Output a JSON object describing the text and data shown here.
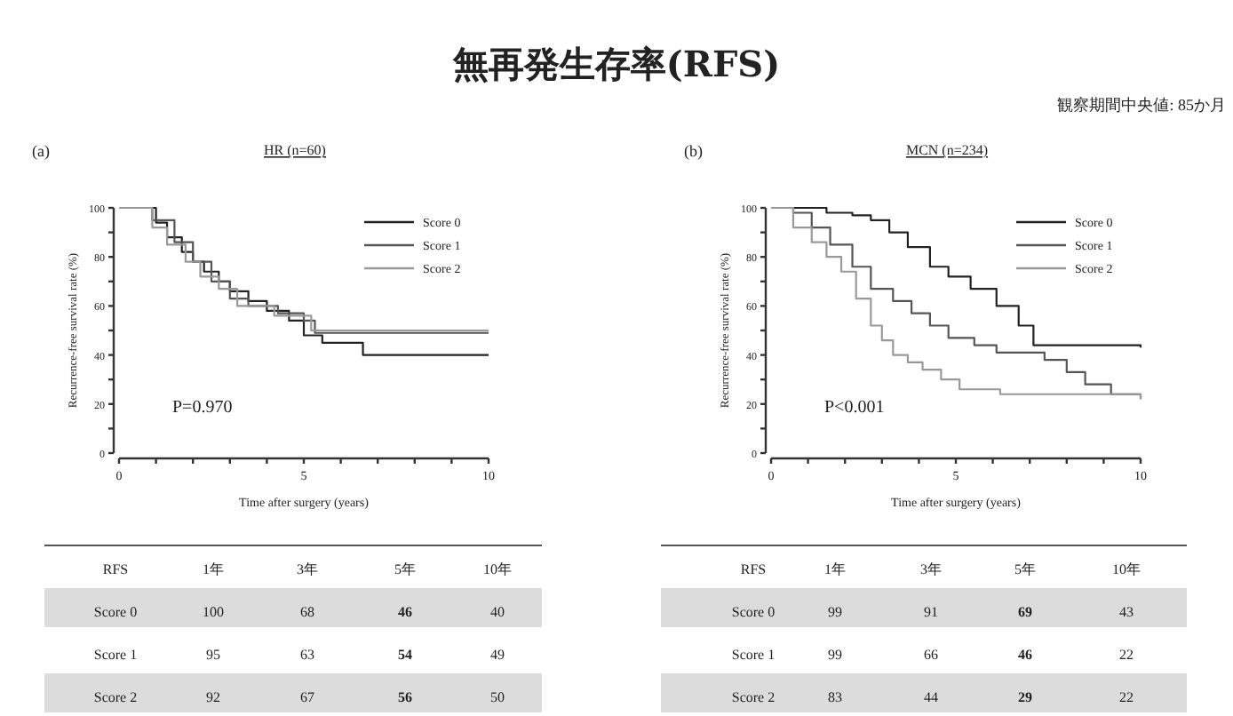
{
  "chart_data": [
    {
      "type": "other",
      "title": "無再発生存率(RFS)",
      "annotations": [
        "観察期間中央値: 85か月"
      ]
    },
    {
      "type": "step",
      "title": "HR (n=60)",
      "xlabel": "Time after surgery (years)",
      "ylabel": "Recurrence-free survival rate (%)",
      "annotations": [
        "(a)",
        "P=0.970"
      ],
      "legend": "top right",
      "xlim": [
        0,
        10
      ],
      "xticks": [
        0,
        {
          "value": 1,
          "label": null
        },
        {
          "value": 2,
          "label": null
        },
        {
          "value": 3,
          "label": null
        },
        {
          "value": 4,
          "label": null
        },
        5,
        {
          "value": 6,
          "label": null
        },
        {
          "value": 7,
          "label": null
        },
        {
          "value": 8,
          "label": null
        },
        {
          "value": 9,
          "label": null
        },
        10
      ],
      "ylim": [
        0,
        100
      ],
      "yticks": [
        0,
        {
          "value": 10,
          "label": null
        },
        20,
        {
          "value": 30,
          "label": null
        },
        40,
        {
          "value": 50,
          "label": null
        },
        60,
        {
          "value": 70,
          "label": null
        },
        80,
        {
          "value": 90,
          "label": null
        },
        100
      ],
      "series": [
        {
          "name": "Score 0",
          "color": "#222222",
          "x": [
            0,
            1,
            1.3,
            1.7,
            2,
            2.3,
            2.7,
            3,
            3.5,
            4,
            4.6,
            5,
            5.5,
            6.6,
            10
          ],
          "values": [
            100,
            94,
            88,
            82,
            78,
            74,
            70,
            66,
            62,
            58,
            54,
            48,
            45,
            40,
            40
          ]
        },
        {
          "name": "Score 1",
          "color": "#555555",
          "x": [
            0,
            0.9,
            1.5,
            2,
            2.5,
            3,
            3.5,
            4.3,
            5,
            5.3,
            10
          ],
          "values": [
            100,
            95,
            86,
            78,
            70,
            63,
            60,
            57,
            54,
            49,
            49
          ]
        },
        {
          "name": "Score 2",
          "color": "#999999",
          "x": [
            0,
            0.9,
            1.3,
            1.8,
            2.2,
            2.7,
            3.2,
            4.2,
            5.2,
            10
          ],
          "values": [
            100,
            92,
            85,
            78,
            72,
            67,
            60,
            56,
            50,
            50
          ]
        }
      ]
    },
    {
      "type": "step",
      "title": "MCN (n=234)",
      "xlabel": "Time after surgery (years)",
      "ylabel": "Recurrence-free survival rate (%)",
      "annotations": [
        "(b)",
        "P<0.001"
      ],
      "legend": "top right",
      "xlim": [
        0,
        10
      ],
      "xticks": [
        0,
        {
          "value": 1,
          "label": null
        },
        {
          "value": 2,
          "label": null
        },
        {
          "value": 3,
          "label": null
        },
        {
          "value": 4,
          "label": null
        },
        5,
        {
          "value": 6,
          "label": null
        },
        {
          "value": 7,
          "label": null
        },
        {
          "value": 8,
          "label": null
        },
        {
          "value": 9,
          "label": null
        },
        10
      ],
      "ylim": [
        0,
        100
      ],
      "yticks": [
        0,
        {
          "value": 10,
          "label": null
        },
        20,
        {
          "value": 30,
          "label": null
        },
        40,
        {
          "value": 50,
          "label": null
        },
        60,
        {
          "value": 70,
          "label": null
        },
        80,
        {
          "value": 90,
          "label": null
        },
        100
      ],
      "series": [
        {
          "name": "Score 0",
          "color": "#222222",
          "x": [
            0,
            1.5,
            2.2,
            2.7,
            3.2,
            3.7,
            4.3,
            4.8,
            5.4,
            6.1,
            6.7,
            7.1,
            10
          ],
          "values": [
            100,
            98,
            97,
            95,
            90,
            84,
            76,
            72,
            67,
            60,
            52,
            44,
            43
          ]
        },
        {
          "name": "Score 1",
          "color": "#555555",
          "x": [
            0,
            0.6,
            1.1,
            1.6,
            2.2,
            2.7,
            3.3,
            3.8,
            4.3,
            4.8,
            5.5,
            6.1,
            7.4,
            8,
            8.5,
            9.2,
            10
          ],
          "values": [
            100,
            98,
            92,
            85,
            76,
            67,
            62,
            57,
            52,
            47,
            44,
            41,
            38,
            33,
            28,
            24,
            22
          ]
        },
        {
          "name": "Score 2",
          "color": "#999999",
          "x": [
            0,
            0.6,
            1.1,
            1.5,
            1.9,
            2.3,
            2.7,
            3,
            3.3,
            3.7,
            4.1,
            4.6,
            5.1,
            6.2,
            10
          ],
          "values": [
            100,
            92,
            86,
            80,
            74,
            63,
            52,
            46,
            40,
            37,
            34,
            30,
            26,
            24,
            22
          ]
        }
      ]
    },
    {
      "type": "heatmap",
      "ylabel": "RFS",
      "categories": [
        "1年",
        "3年",
        "5年",
        "10年"
      ],
      "y_categories": [
        "Score 0",
        "Score 1",
        "Score 2"
      ],
      "cells": [
        [
          100,
          68,
          46,
          40
        ],
        [
          95,
          63,
          54,
          49
        ],
        [
          92,
          67,
          56,
          50
        ]
      ],
      "data_labels": true
    },
    {
      "type": "heatmap",
      "ylabel": "RFS",
      "categories": [
        "1年",
        "3年",
        "5年",
        "10年"
      ],
      "y_categories": [
        "Score 0",
        "Score 1",
        "Score 2"
      ],
      "cells": [
        [
          99,
          91,
          69,
          43
        ],
        [
          99,
          66,
          46,
          22
        ],
        [
          83,
          44,
          29,
          22
        ]
      ],
      "data_labels": true
    }
  ]
}
